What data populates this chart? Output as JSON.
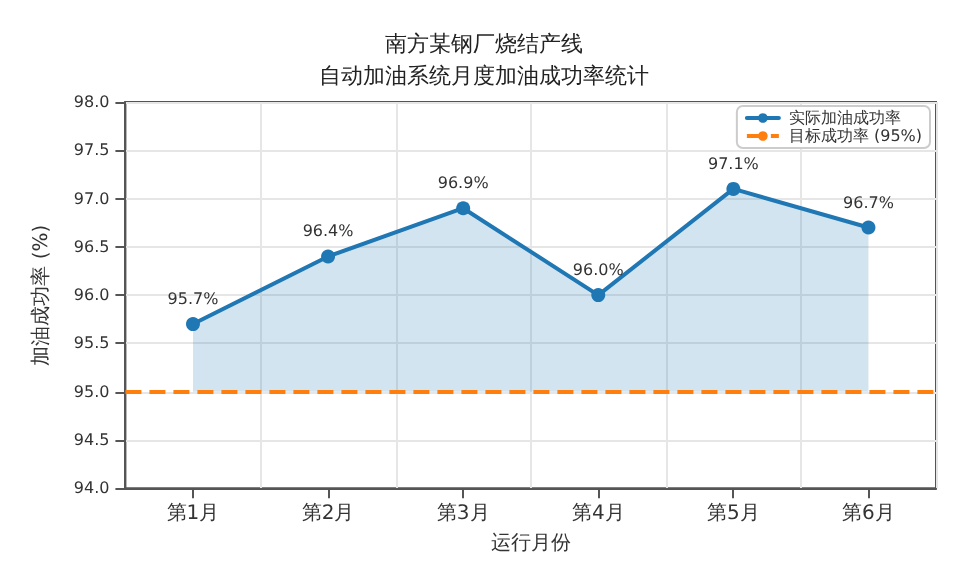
{
  "chart_data": {
    "type": "area",
    "title": "南方某钢厂烧结产线",
    "subtitle": "自动加油系统月度加油成功率统计",
    "xlabel": "运行月份",
    "ylabel": "加油成功率 (%)",
    "categories": [
      "第1月",
      "第2月",
      "第3月",
      "第4月",
      "第5月",
      "第6月"
    ],
    "series": [
      {
        "name": "实际加油成功率",
        "color": "#1f77b4",
        "values": [
          95.7,
          96.4,
          96.9,
          96.0,
          97.1,
          96.7
        ],
        "value_labels": [
          "95.7%",
          "96.4%",
          "96.9%",
          "96.0%",
          "97.1%",
          "96.7%"
        ]
      }
    ],
    "ref_lines": [
      {
        "axis": "y",
        "value": 95,
        "label": "目标成功率 (95%)",
        "color": "#ff7f0e",
        "line_style": "dashed"
      }
    ],
    "ylim": [
      94,
      98
    ],
    "yticks": [
      {
        "value": 94,
        "label": "94.0"
      },
      {
        "value": 94.5,
        "label": "94.5"
      },
      {
        "value": 95,
        "label": "95.0"
      },
      {
        "value": 95.5,
        "label": "95.5"
      },
      {
        "value": 96,
        "label": "96.0"
      },
      {
        "value": 96.5,
        "label": "96.5"
      },
      {
        "value": 97,
        "label": "97.0"
      },
      {
        "value": 97.5,
        "label": "97.5"
      },
      {
        "value": 98,
        "label": "98.0"
      }
    ],
    "grid": true,
    "legend": "top right",
    "marker": "circle",
    "line_style": "solid"
  }
}
